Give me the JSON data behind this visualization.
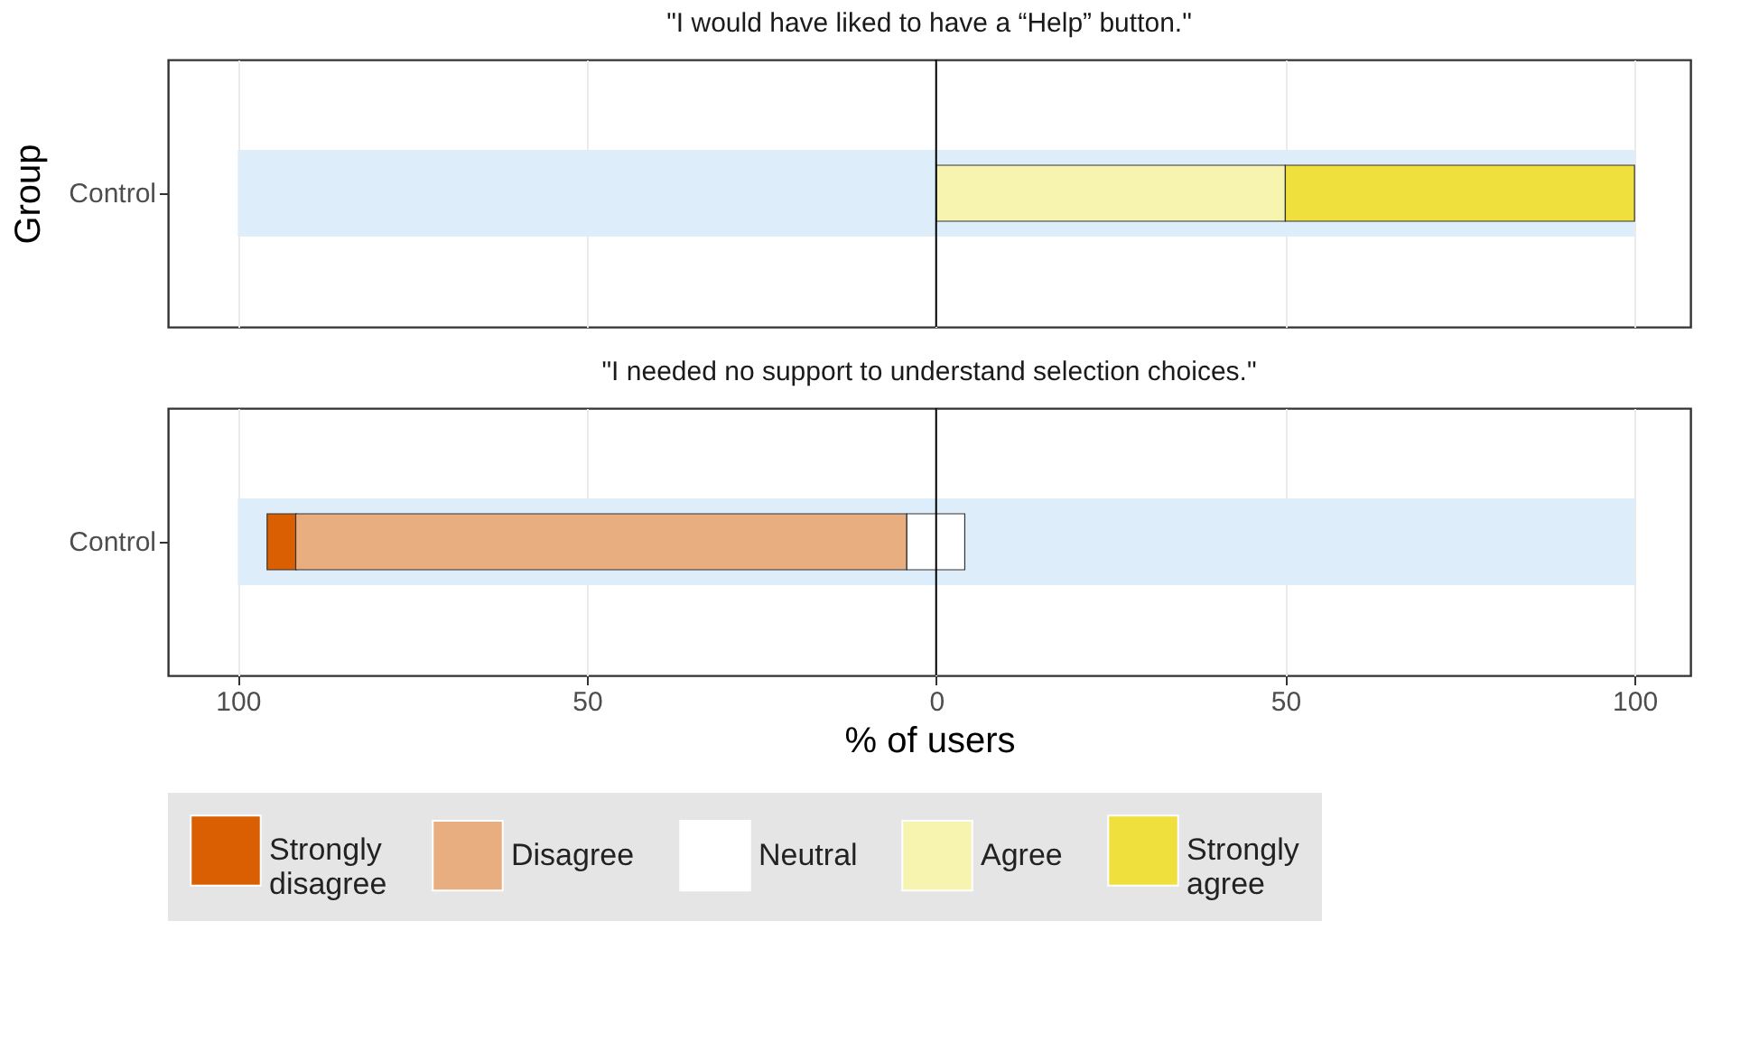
{
  "chart_data": [
    {
      "type": "bar",
      "orientation": "horizontal",
      "title": "\"I would have liked to have a “Help” button.\"",
      "ylabel": "Group",
      "categories": [
        "Control"
      ],
      "series": [
        {
          "name": "Strongly disagree",
          "color": "#d95f02",
          "values": [
            null
          ],
          "base": [
            null
          ]
        },
        {
          "name": "Disagree",
          "color": "#e9ae80",
          "values": [
            null
          ],
          "base": [
            null
          ]
        },
        {
          "name": "Neutral",
          "color": "#ffffff",
          "values": [
            null
          ],
          "base": [
            null
          ]
        },
        {
          "name": "Agree",
          "color": "#f7f4b0",
          "values": [
            50
          ],
          "base": [
            0
          ]
        },
        {
          "name": "Strongly agree",
          "color": "#efe03d",
          "values": [
            50
          ],
          "base": [
            50
          ]
        }
      ],
      "xlim": [
        -110,
        108
      ],
      "tick_labels": "y",
      "grid": "x",
      "legend": "bottom",
      "bands": [
        {
          "axis": "x",
          "from": -100,
          "to": 100,
          "color": "#ddeefa"
        }
      ],
      "ref_lines": [
        {
          "axis": "x",
          "value": 0,
          "color": "#000000"
        }
      ]
    },
    {
      "type": "bar",
      "orientation": "horizontal",
      "title": "\"I needed no support to understand selection choices.\"",
      "xlabel": "% of users",
      "categories": [
        "Control"
      ],
      "series": [
        {
          "color": "#d95f02",
          "values": [
            4.2
          ],
          "base": [
            -95.8
          ]
        },
        {
          "color": "#e9ae80",
          "values": [
            87.5
          ],
          "base": [
            -91.7
          ]
        },
        {
          "color": "#ffffff",
          "values": [
            8.3
          ],
          "base": [
            -4.2
          ]
        }
      ],
      "xlim": [
        -110,
        108
      ],
      "xticks": [
        {
          "value": -100,
          "label": "100"
        },
        {
          "value": -50,
          "label": "50"
        },
        0,
        50,
        100
      ],
      "grid": "x",
      "bands": [
        {
          "axis": "x",
          "from": -100,
          "to": 100,
          "color": "#ddeefa"
        }
      ],
      "ref_lines": [
        {
          "axis": "x",
          "value": 0,
          "color": "#000000"
        }
      ]
    }
  ]
}
